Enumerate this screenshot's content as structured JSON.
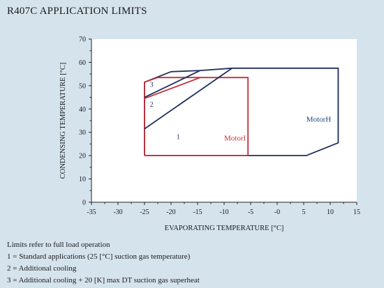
{
  "chart_data": {
    "type": "line",
    "title": "R407C APPLICATION LIMITS",
    "xlabel": "EVAPORATING TEMPERATURE [°C]",
    "ylabel": "CONDENSING TEMPERATURE [°C]",
    "xlim": [
      -35,
      15
    ],
    "ylim": [
      0,
      70
    ],
    "x_ticks": [
      -35,
      -30,
      -25,
      -20,
      -15,
      -10,
      -5,
      0,
      5,
      10,
      15
    ],
    "x_tick_labels": [
      "-35",
      "-30",
      "-25",
      "-20",
      "-15",
      "-10",
      "-5",
      "-0",
      "5",
      "10",
      "15"
    ],
    "y_ticks": [
      0,
      10,
      20,
      30,
      40,
      50,
      60,
      70
    ],
    "grid": false,
    "series": [
      {
        "name": "MotorH",
        "color": "#1f2f5c",
        "points": [
          [
            -25,
            20
          ],
          [
            5.5,
            20
          ],
          [
            11.5,
            25.5
          ],
          [
            11.5,
            57.5
          ],
          [
            -8.5,
            57.5
          ],
          [
            -14.5,
            56.5
          ],
          [
            -20,
            56
          ],
          [
            -25,
            51.5
          ],
          [
            -25,
            20
          ]
        ]
      },
      {
        "name": "MotorI",
        "color": "#c0303a",
        "points": [
          [
            -25,
            20
          ],
          [
            -5.5,
            20
          ],
          [
            -5.5,
            53.5
          ],
          [
            -22.5,
            53.5
          ],
          [
            -25,
            51.5
          ],
          [
            -25,
            20
          ]
        ]
      }
    ],
    "region_lines": [
      {
        "color": "#1f2f5c",
        "points": [
          [
            -25,
            31.5
          ],
          [
            -8.5,
            57.5
          ]
        ]
      },
      {
        "color": "#1f2f5c",
        "points": [
          [
            -25,
            45
          ],
          [
            -14.5,
            56.5
          ]
        ]
      },
      {
        "color": "#c0303a",
        "points": [
          [
            -25,
            44.5
          ],
          [
            -14.5,
            53.5
          ]
        ]
      }
    ],
    "annotations": [
      {
        "text": "1",
        "x": -19,
        "y": 27,
        "color": "#1f2f5c"
      },
      {
        "text": "2",
        "x": -24,
        "y": 41,
        "color": "#1f2f5c"
      },
      {
        "text": "3",
        "x": -24,
        "y": 49.5,
        "color": "#1f2f5c"
      },
      {
        "text": "MotorH",
        "x": 5.5,
        "y": 34.5,
        "color": "#1f3f7a"
      },
      {
        "text": "MotorI",
        "x": -10,
        "y": 26.5,
        "color": "#c0303a"
      }
    ]
  },
  "notes": {
    "line0": "Limits refer to full load operation",
    "line1": "1 = Standard applications (25 [°C] suction gas temperature)",
    "line2": "2 = Additional cooling",
    "line3": "3 = Additional cooling + 20 [K] max DT suction gas superheat"
  }
}
